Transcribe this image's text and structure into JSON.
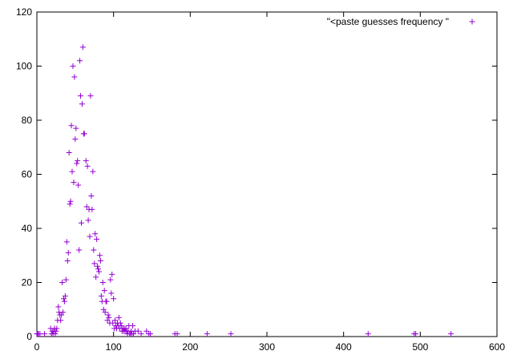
{
  "chart_data": {
    "type": "scatter",
    "xlim": [
      0,
      600
    ],
    "ylim": [
      0,
      120
    ],
    "x_ticks": [
      0,
      100,
      200,
      300,
      400,
      500,
      600
    ],
    "y_ticks": [
      0,
      20,
      40,
      60,
      80,
      100,
      120
    ],
    "grid": false,
    "legend_position": "top-right",
    "marker": "plus",
    "series": [
      {
        "name": "\"<paste guesses frequency \"",
        "color": "#9400d3",
        "points": [
          [
            0,
            1
          ],
          [
            1,
            1
          ],
          [
            2,
            1
          ],
          [
            4,
            1
          ],
          [
            10,
            1
          ],
          [
            18,
            3
          ],
          [
            19,
            1
          ],
          [
            20,
            2
          ],
          [
            21,
            1
          ],
          [
            22,
            2
          ],
          [
            23,
            3
          ],
          [
            24,
            1
          ],
          [
            25,
            2
          ],
          [
            26,
            3
          ],
          [
            27,
            6
          ],
          [
            28,
            11
          ],
          [
            29,
            9
          ],
          [
            30,
            8
          ],
          [
            31,
            6
          ],
          [
            32,
            8
          ],
          [
            33,
            20
          ],
          [
            34,
            9
          ],
          [
            35,
            14
          ],
          [
            36,
            13
          ],
          [
            37,
            15
          ],
          [
            38,
            21
          ],
          [
            39,
            35
          ],
          [
            40,
            28
          ],
          [
            41,
            31
          ],
          [
            42,
            68
          ],
          [
            43,
            49
          ],
          [
            44,
            50
          ],
          [
            45,
            78
          ],
          [
            46,
            61
          ],
          [
            47,
            100
          ],
          [
            48,
            57
          ],
          [
            49,
            96
          ],
          [
            50,
            73
          ],
          [
            51,
            77
          ],
          [
            52,
            64
          ],
          [
            53,
            65
          ],
          [
            54,
            56
          ],
          [
            55,
            32
          ],
          [
            56,
            102
          ],
          [
            57,
            89
          ],
          [
            58,
            42
          ],
          [
            59,
            86
          ],
          [
            60,
            107
          ],
          [
            61,
            75
          ],
          [
            62,
            75
          ],
          [
            64,
            65
          ],
          [
            65,
            48
          ],
          [
            66,
            63
          ],
          [
            67,
            43
          ],
          [
            68,
            47
          ],
          [
            69,
            37
          ],
          [
            70,
            89
          ],
          [
            71,
            52
          ],
          [
            72,
            47
          ],
          [
            73,
            61
          ],
          [
            74,
            32
          ],
          [
            75,
            27
          ],
          [
            76,
            38
          ],
          [
            77,
            22
          ],
          [
            78,
            36
          ],
          [
            79,
            26
          ],
          [
            80,
            25
          ],
          [
            81,
            24
          ],
          [
            82,
            30
          ],
          [
            83,
            28
          ],
          [
            84,
            15
          ],
          [
            85,
            13
          ],
          [
            86,
            20
          ],
          [
            87,
            10
          ],
          [
            88,
            17
          ],
          [
            89,
            9
          ],
          [
            90,
            13
          ],
          [
            91,
            13
          ],
          [
            92,
            6
          ],
          [
            93,
            8
          ],
          [
            94,
            7
          ],
          [
            95,
            5
          ],
          [
            96,
            21
          ],
          [
            97,
            16
          ],
          [
            98,
            23
          ],
          [
            99,
            5
          ],
          [
            100,
            14
          ],
          [
            101,
            3
          ],
          [
            102,
            6
          ],
          [
            103,
            4
          ],
          [
            104,
            3
          ],
          [
            105,
            5
          ],
          [
            106,
            4
          ],
          [
            107,
            7
          ],
          [
            108,
            3
          ],
          [
            109,
            5
          ],
          [
            110,
            4
          ],
          [
            111,
            2
          ],
          [
            112,
            3
          ],
          [
            113,
            2
          ],
          [
            114,
            3
          ],
          [
            115,
            2
          ],
          [
            116,
            3
          ],
          [
            117,
            2
          ],
          [
            118,
            1
          ],
          [
            119,
            2
          ],
          [
            120,
            4
          ],
          [
            121,
            1
          ],
          [
            122,
            1
          ],
          [
            123,
            2
          ],
          [
            124,
            1
          ],
          [
            125,
            4
          ],
          [
            126,
            1
          ],
          [
            128,
            2
          ],
          [
            132,
            2
          ],
          [
            136,
            1
          ],
          [
            143,
            2
          ],
          [
            146,
            1
          ],
          [
            148,
            1
          ],
          [
            180,
            1
          ],
          [
            183,
            1
          ],
          [
            222,
            1
          ],
          [
            253,
            1
          ],
          [
            432,
            1
          ],
          [
            492,
            1
          ],
          [
            494,
            1
          ],
          [
            540,
            1
          ]
        ]
      }
    ]
  }
}
